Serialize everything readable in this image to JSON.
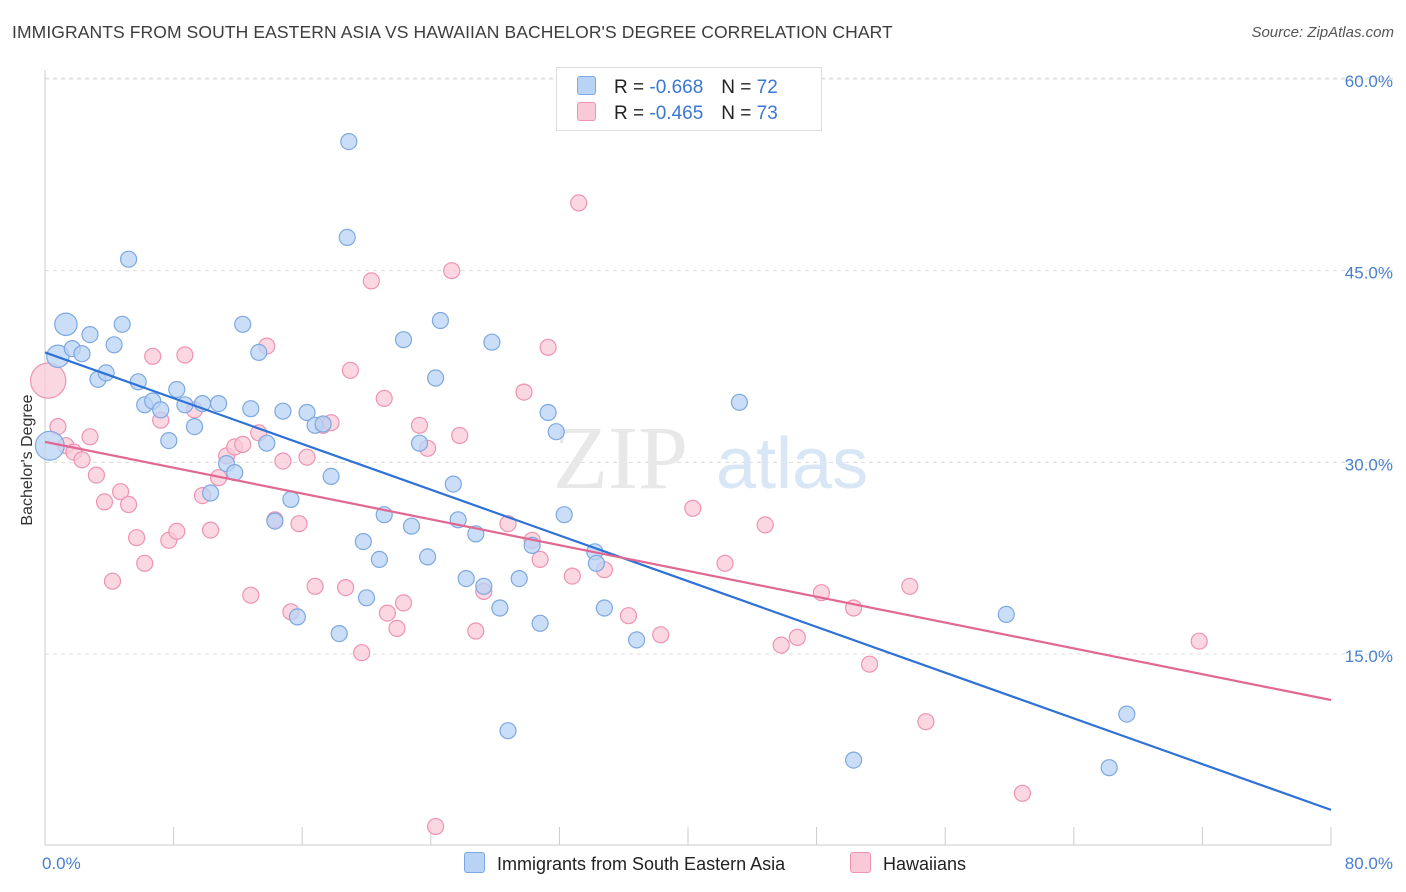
{
  "header": {
    "title": "IMMIGRANTS FROM SOUTH EASTERN ASIA VS HAWAIIAN BACHELOR'S DEGREE CORRELATION CHART",
    "source": "Source: ZipAtlas.com"
  },
  "watermark": {
    "zip": "ZIP",
    "atlas": "atlas"
  },
  "legend": {
    "r_label": "R =",
    "n_label": "N =",
    "series1": {
      "r": "-0.668",
      "n": "72"
    },
    "series2": {
      "r": "-0.465",
      "n": "73"
    }
  },
  "colors": {
    "series1_fill": "#b9d3f4",
    "series1_stroke": "#7da8e0",
    "series1_line": "#2f72d6",
    "series2_fill": "#f9c9d8",
    "series2_stroke": "#ee93b2",
    "series2_line": "#e06892",
    "axis_text": "#4a7fcf"
  },
  "chart_data": {
    "type": "scatter",
    "title": "IMMIGRANTS FROM SOUTH EASTERN ASIA VS HAWAIIAN BACHELOR'S DEGREE CORRELATION CHART",
    "xlabel": "",
    "ylabel": "Bachelor's Degree",
    "xlim": [
      0,
      80
    ],
    "ylim": [
      0,
      62.5
    ],
    "x_tick_labels": [
      "0.0%",
      "80.0%"
    ],
    "y_ticks": [
      15,
      30,
      45,
      60
    ],
    "y_tick_labels": [
      "15.0%",
      "30.0%",
      "45.0%",
      "60.0%"
    ],
    "grid": true,
    "legend_position": "top-center",
    "series": [
      {
        "name": "Immigrants from South Eastern Asia",
        "r": -0.668,
        "n": 72,
        "trend": {
          "x": [
            0,
            80
          ],
          "y": [
            38.6,
            2.8
          ]
        },
        "points": [
          {
            "x": 0.3,
            "y": 31.3,
            "s": 3
          },
          {
            "x": 0.8,
            "y": 38.3,
            "s": 2
          },
          {
            "x": 1.3,
            "y": 40.8,
            "s": 2
          },
          {
            "x": 1.7,
            "y": 38.9,
            "s": 1
          },
          {
            "x": 2.3,
            "y": 38.5,
            "s": 1
          },
          {
            "x": 2.8,
            "y": 40.0,
            "s": 1
          },
          {
            "x": 3.3,
            "y": 36.5,
            "s": 1
          },
          {
            "x": 3.8,
            "y": 37.0,
            "s": 1
          },
          {
            "x": 4.3,
            "y": 39.2,
            "s": 1
          },
          {
            "x": 4.8,
            "y": 40.8,
            "s": 1
          },
          {
            "x": 5.2,
            "y": 45.9,
            "s": 1
          },
          {
            "x": 5.8,
            "y": 36.3,
            "s": 1
          },
          {
            "x": 6.2,
            "y": 34.5,
            "s": 1
          },
          {
            "x": 6.7,
            "y": 34.8,
            "s": 1
          },
          {
            "x": 7.2,
            "y": 34.1,
            "s": 1
          },
          {
            "x": 7.7,
            "y": 31.7,
            "s": 1
          },
          {
            "x": 8.2,
            "y": 35.7,
            "s": 1
          },
          {
            "x": 8.7,
            "y": 34.5,
            "s": 1
          },
          {
            "x": 9.3,
            "y": 32.8,
            "s": 1
          },
          {
            "x": 9.8,
            "y": 34.6,
            "s": 1
          },
          {
            "x": 10.3,
            "y": 27.6,
            "s": 1
          },
          {
            "x": 10.8,
            "y": 34.6,
            "s": 1
          },
          {
            "x": 11.3,
            "y": 29.9,
            "s": 1
          },
          {
            "x": 11.8,
            "y": 29.2,
            "s": 1
          },
          {
            "x": 12.3,
            "y": 40.8,
            "s": 1
          },
          {
            "x": 12.8,
            "y": 34.2,
            "s": 1
          },
          {
            "x": 13.3,
            "y": 38.6,
            "s": 1
          },
          {
            "x": 13.8,
            "y": 31.5,
            "s": 1
          },
          {
            "x": 14.3,
            "y": 25.4,
            "s": 1
          },
          {
            "x": 14.8,
            "y": 34.0,
            "s": 1
          },
          {
            "x": 15.3,
            "y": 27.1,
            "s": 1
          },
          {
            "x": 15.7,
            "y": 17.9,
            "s": 1
          },
          {
            "x": 16.3,
            "y": 33.9,
            "s": 1
          },
          {
            "x": 16.8,
            "y": 32.9,
            "s": 1
          },
          {
            "x": 17.3,
            "y": 33.0,
            "s": 1
          },
          {
            "x": 17.8,
            "y": 28.9,
            "s": 1
          },
          {
            "x": 18.3,
            "y": 16.6,
            "s": 1
          },
          {
            "x": 18.8,
            "y": 47.6,
            "s": 1
          },
          {
            "x": 18.9,
            "y": 55.1,
            "s": 1
          },
          {
            "x": 19.8,
            "y": 23.8,
            "s": 1
          },
          {
            "x": 20.0,
            "y": 19.4,
            "s": 1
          },
          {
            "x": 20.8,
            "y": 22.4,
            "s": 1
          },
          {
            "x": 21.1,
            "y": 25.9,
            "s": 1
          },
          {
            "x": 22.3,
            "y": 39.6,
            "s": 1
          },
          {
            "x": 22.8,
            "y": 25.0,
            "s": 1
          },
          {
            "x": 23.3,
            "y": 31.5,
            "s": 1
          },
          {
            "x": 23.8,
            "y": 22.6,
            "s": 1
          },
          {
            "x": 24.3,
            "y": 36.6,
            "s": 1
          },
          {
            "x": 24.6,
            "y": 41.1,
            "s": 1
          },
          {
            "x": 25.4,
            "y": 28.3,
            "s": 1
          },
          {
            "x": 25.7,
            "y": 25.5,
            "s": 1
          },
          {
            "x": 26.2,
            "y": 20.9,
            "s": 1
          },
          {
            "x": 26.8,
            "y": 24.4,
            "s": 1
          },
          {
            "x": 27.3,
            "y": 20.3,
            "s": 1
          },
          {
            "x": 27.8,
            "y": 39.4,
            "s": 1
          },
          {
            "x": 28.3,
            "y": 18.6,
            "s": 1
          },
          {
            "x": 28.8,
            "y": 9.0,
            "s": 1
          },
          {
            "x": 29.5,
            "y": 20.9,
            "s": 1
          },
          {
            "x": 30.3,
            "y": 23.5,
            "s": 1
          },
          {
            "x": 30.8,
            "y": 17.4,
            "s": 1
          },
          {
            "x": 31.3,
            "y": 33.9,
            "s": 1
          },
          {
            "x": 31.8,
            "y": 32.4,
            "s": 1
          },
          {
            "x": 32.3,
            "y": 25.9,
            "s": 1
          },
          {
            "x": 34.2,
            "y": 23.0,
            "s": 1
          },
          {
            "x": 34.3,
            "y": 22.1,
            "s": 1
          },
          {
            "x": 34.8,
            "y": 18.6,
            "s": 1
          },
          {
            "x": 36.8,
            "y": 16.1,
            "s": 1
          },
          {
            "x": 43.2,
            "y": 34.7,
            "s": 1
          },
          {
            "x": 50.3,
            "y": 6.7,
            "s": 1
          },
          {
            "x": 59.8,
            "y": 18.1,
            "s": 1
          },
          {
            "x": 67.3,
            "y": 10.3,
            "s": 1
          },
          {
            "x": 66.2,
            "y": 6.1,
            "s": 1
          }
        ]
      },
      {
        "name": "Hawaiians",
        "r": -0.465,
        "n": 73,
        "trend": {
          "x": [
            0,
            80
          ],
          "y": [
            31.6,
            11.4
          ]
        },
        "points": [
          {
            "x": 0.2,
            "y": 36.4,
            "s": 4
          },
          {
            "x": 0.8,
            "y": 32.8,
            "s": 1
          },
          {
            "x": 1.3,
            "y": 31.3,
            "s": 1
          },
          {
            "x": 1.8,
            "y": 30.8,
            "s": 1
          },
          {
            "x": 2.3,
            "y": 30.2,
            "s": 1
          },
          {
            "x": 2.8,
            "y": 32.0,
            "s": 1
          },
          {
            "x": 3.2,
            "y": 29.0,
            "s": 1
          },
          {
            "x": 3.7,
            "y": 26.9,
            "s": 1
          },
          {
            "x": 4.2,
            "y": 20.7,
            "s": 1
          },
          {
            "x": 4.7,
            "y": 27.7,
            "s": 1
          },
          {
            "x": 5.2,
            "y": 26.7,
            "s": 1
          },
          {
            "x": 5.7,
            "y": 24.1,
            "s": 1
          },
          {
            "x": 6.2,
            "y": 22.1,
            "s": 1
          },
          {
            "x": 6.7,
            "y": 38.3,
            "s": 1
          },
          {
            "x": 7.2,
            "y": 33.3,
            "s": 1
          },
          {
            "x": 7.7,
            "y": 23.9,
            "s": 1
          },
          {
            "x": 8.2,
            "y": 24.6,
            "s": 1
          },
          {
            "x": 8.7,
            "y": 38.4,
            "s": 1
          },
          {
            "x": 9.3,
            "y": 34.1,
            "s": 1
          },
          {
            "x": 9.8,
            "y": 27.4,
            "s": 1
          },
          {
            "x": 10.3,
            "y": 24.7,
            "s": 1
          },
          {
            "x": 10.8,
            "y": 28.8,
            "s": 1
          },
          {
            "x": 11.3,
            "y": 30.5,
            "s": 1
          },
          {
            "x": 11.8,
            "y": 31.2,
            "s": 1
          },
          {
            "x": 12.3,
            "y": 31.4,
            "s": 1
          },
          {
            "x": 12.8,
            "y": 19.6,
            "s": 1
          },
          {
            "x": 13.3,
            "y": 32.3,
            "s": 1
          },
          {
            "x": 13.8,
            "y": 39.1,
            "s": 1
          },
          {
            "x": 14.3,
            "y": 25.5,
            "s": 1
          },
          {
            "x": 14.8,
            "y": 30.1,
            "s": 1
          },
          {
            "x": 15.3,
            "y": 18.3,
            "s": 1
          },
          {
            "x": 15.8,
            "y": 25.2,
            "s": 1
          },
          {
            "x": 16.3,
            "y": 30.4,
            "s": 1
          },
          {
            "x": 16.8,
            "y": 20.3,
            "s": 1
          },
          {
            "x": 17.3,
            "y": 32.9,
            "s": 1
          },
          {
            "x": 17.8,
            "y": 33.1,
            "s": 1
          },
          {
            "x": 18.7,
            "y": 20.2,
            "s": 1
          },
          {
            "x": 19.0,
            "y": 37.2,
            "s": 1
          },
          {
            "x": 19.7,
            "y": 15.1,
            "s": 1
          },
          {
            "x": 20.3,
            "y": 44.2,
            "s": 1
          },
          {
            "x": 21.1,
            "y": 35.0,
            "s": 1
          },
          {
            "x": 21.3,
            "y": 18.2,
            "s": 1
          },
          {
            "x": 21.9,
            "y": 17.0,
            "s": 1
          },
          {
            "x": 22.3,
            "y": 19.0,
            "s": 1
          },
          {
            "x": 23.3,
            "y": 32.9,
            "s": 1
          },
          {
            "x": 23.8,
            "y": 31.1,
            "s": 1
          },
          {
            "x": 24.3,
            "y": 1.5,
            "s": 1
          },
          {
            "x": 25.3,
            "y": 45.0,
            "s": 1
          },
          {
            "x": 25.8,
            "y": 32.1,
            "s": 1
          },
          {
            "x": 26.8,
            "y": 16.8,
            "s": 1
          },
          {
            "x": 27.3,
            "y": 19.9,
            "s": 1
          },
          {
            "x": 28.8,
            "y": 25.2,
            "s": 1
          },
          {
            "x": 29.8,
            "y": 35.5,
            "s": 1
          },
          {
            "x": 30.3,
            "y": 23.9,
            "s": 1
          },
          {
            "x": 30.8,
            "y": 22.4,
            "s": 1
          },
          {
            "x": 31.3,
            "y": 39.0,
            "s": 1
          },
          {
            "x": 32.8,
            "y": 21.1,
            "s": 1
          },
          {
            "x": 33.2,
            "y": 50.3,
            "s": 1
          },
          {
            "x": 34.8,
            "y": 21.6,
            "s": 1
          },
          {
            "x": 36.3,
            "y": 18.0,
            "s": 1
          },
          {
            "x": 38.3,
            "y": 16.5,
            "s": 1
          },
          {
            "x": 40.3,
            "y": 26.4,
            "s": 1
          },
          {
            "x": 42.3,
            "y": 22.1,
            "s": 1
          },
          {
            "x": 44.8,
            "y": 25.1,
            "s": 1
          },
          {
            "x": 45.8,
            "y": 15.7,
            "s": 1
          },
          {
            "x": 46.8,
            "y": 16.3,
            "s": 1
          },
          {
            "x": 48.3,
            "y": 19.8,
            "s": 1
          },
          {
            "x": 50.3,
            "y": 18.6,
            "s": 1
          },
          {
            "x": 51.3,
            "y": 14.2,
            "s": 1
          },
          {
            "x": 53.8,
            "y": 20.3,
            "s": 1
          },
          {
            "x": 54.8,
            "y": 9.7,
            "s": 1
          },
          {
            "x": 60.8,
            "y": 4.1,
            "s": 1
          },
          {
            "x": 71.8,
            "y": 16.0,
            "s": 1
          }
        ]
      }
    ]
  }
}
